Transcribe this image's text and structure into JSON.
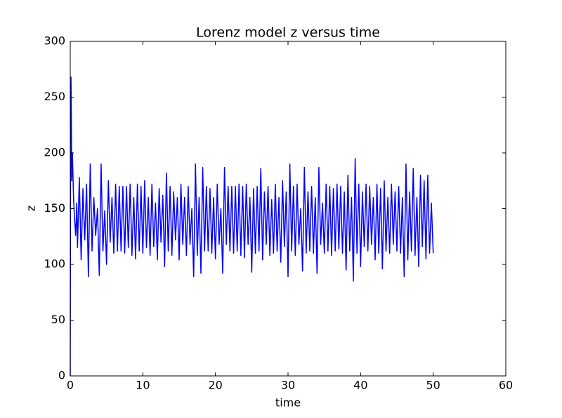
{
  "chart_data": {
    "type": "line",
    "title": "Lorenz model z versus time",
    "x_label": "time",
    "y_label": "z",
    "color": "#0000ff",
    "grid": false,
    "xlim": [
      0,
      60
    ],
    "xticks": [
      0,
      10,
      20,
      30,
      40,
      50,
      60
    ],
    "ylim": [
      0,
      300
    ],
    "yticks": [
      0,
      50,
      100,
      150,
      200,
      250,
      300
    ],
    "x": [
      0,
      0.05,
      0.1,
      0.15,
      0.2,
      0.3,
      0.45,
      0.6,
      0.75,
      0.9,
      1,
      1.25,
      1.5,
      1.75,
      2,
      2.25,
      2.5,
      2.75,
      3,
      3.25,
      3.5,
      3.75,
      4,
      4.25,
      4.5,
      4.75,
      5,
      5.25,
      5.5,
      5.75,
      6,
      6.25,
      6.5,
      6.75,
      7,
      7.25,
      7.5,
      7.75,
      8,
      8.25,
      8.5,
      8.75,
      9,
      9.25,
      9.5,
      9.75,
      10,
      10.25,
      10.5,
      10.75,
      11,
      11.25,
      11.5,
      11.75,
      12,
      12.25,
      12.5,
      12.75,
      13,
      13.25,
      13.5,
      13.75,
      14,
      14.25,
      14.5,
      14.75,
      15,
      15.25,
      15.5,
      15.75,
      16,
      16.25,
      16.5,
      16.75,
      17,
      17.25,
      17.5,
      17.75,
      18,
      18.25,
      18.5,
      18.75,
      19,
      19.25,
      19.5,
      19.75,
      20,
      20.25,
      20.5,
      20.75,
      21,
      21.25,
      21.5,
      21.75,
      22,
      22.25,
      22.5,
      22.75,
      23,
      23.25,
      23.5,
      23.75,
      24,
      24.25,
      24.5,
      24.75,
      25,
      25.25,
      25.5,
      25.75,
      26,
      26.25,
      26.5,
      26.75,
      27,
      27.25,
      27.5,
      27.75,
      28,
      28.25,
      28.5,
      28.75,
      29,
      29.25,
      29.5,
      29.75,
      30,
      30.25,
      30.5,
      30.75,
      31,
      31.25,
      31.5,
      31.75,
      32,
      32.25,
      32.5,
      32.75,
      33,
      33.25,
      33.5,
      33.75,
      34,
      34.25,
      34.5,
      34.75,
      35,
      35.25,
      35.5,
      35.75,
      36,
      36.25,
      36.5,
      36.75,
      37,
      37.25,
      37.5,
      37.75,
      38,
      38.25,
      38.5,
      38.75,
      39,
      39.25,
      39.5,
      39.75,
      40,
      40.25,
      40.5,
      40.75,
      41,
      41.25,
      41.5,
      41.75,
      42,
      42.25,
      42.5,
      42.75,
      43,
      43.25,
      43.5,
      43.75,
      44,
      44.25,
      44.5,
      44.75,
      45,
      45.25,
      45.5,
      45.75,
      46,
      46.25,
      46.5,
      46.75,
      47,
      47.25,
      47.5,
      47.75,
      48,
      48.25,
      48.5,
      48.75,
      49,
      49.25,
      49.5,
      49.75,
      50
    ],
    "values": [
      0,
      230,
      268,
      237,
      175,
      200,
      160,
      140,
      126,
      155,
      115,
      178,
      104,
      168,
      122,
      172,
      89,
      190,
      112,
      160,
      126,
      150,
      90,
      190,
      112,
      148,
      100,
      175,
      120,
      160,
      110,
      172,
      112,
      170,
      112,
      170,
      110,
      170,
      115,
      172,
      108,
      160,
      105,
      172,
      112,
      170,
      110,
      175,
      115,
      160,
      108,
      172,
      116,
      155,
      104,
      168,
      120,
      162,
      98,
      182,
      112,
      170,
      108,
      165,
      122,
      160,
      104,
      172,
      118,
      160,
      108,
      170,
      118,
      150,
      89,
      190,
      108,
      160,
      92,
      187,
      112,
      170,
      112,
      168,
      110,
      160,
      105,
      172,
      118,
      150,
      92,
      187,
      118,
      170,
      112,
      170,
      110,
      170,
      112,
      172,
      108,
      170,
      106,
      172,
      118,
      160,
      93,
      168,
      110,
      170,
      112,
      186,
      104,
      165,
      118,
      170,
      108,
      158,
      110,
      172,
      112,
      160,
      102,
      175,
      116,
      165,
      89,
      190,
      112,
      170,
      108,
      172,
      118,
      150,
      94,
      187,
      110,
      165,
      112,
      170,
      110,
      160,
      92,
      187,
      118,
      155,
      110,
      172,
      112,
      170,
      108,
      168,
      112,
      172,
      114,
      170,
      110,
      165,
      95,
      180,
      112,
      160,
      85,
      195,
      110,
      172,
      98,
      165,
      116,
      172,
      112,
      170,
      118,
      160,
      104,
      172,
      110,
      168,
      96,
      175,
      112,
      160,
      110,
      172,
      118,
      165,
      112,
      170,
      110,
      160,
      89,
      190,
      104,
      165,
      112,
      186,
      108,
      160,
      98,
      180,
      116,
      175,
      105,
      180,
      110,
      155,
      110
    ]
  }
}
